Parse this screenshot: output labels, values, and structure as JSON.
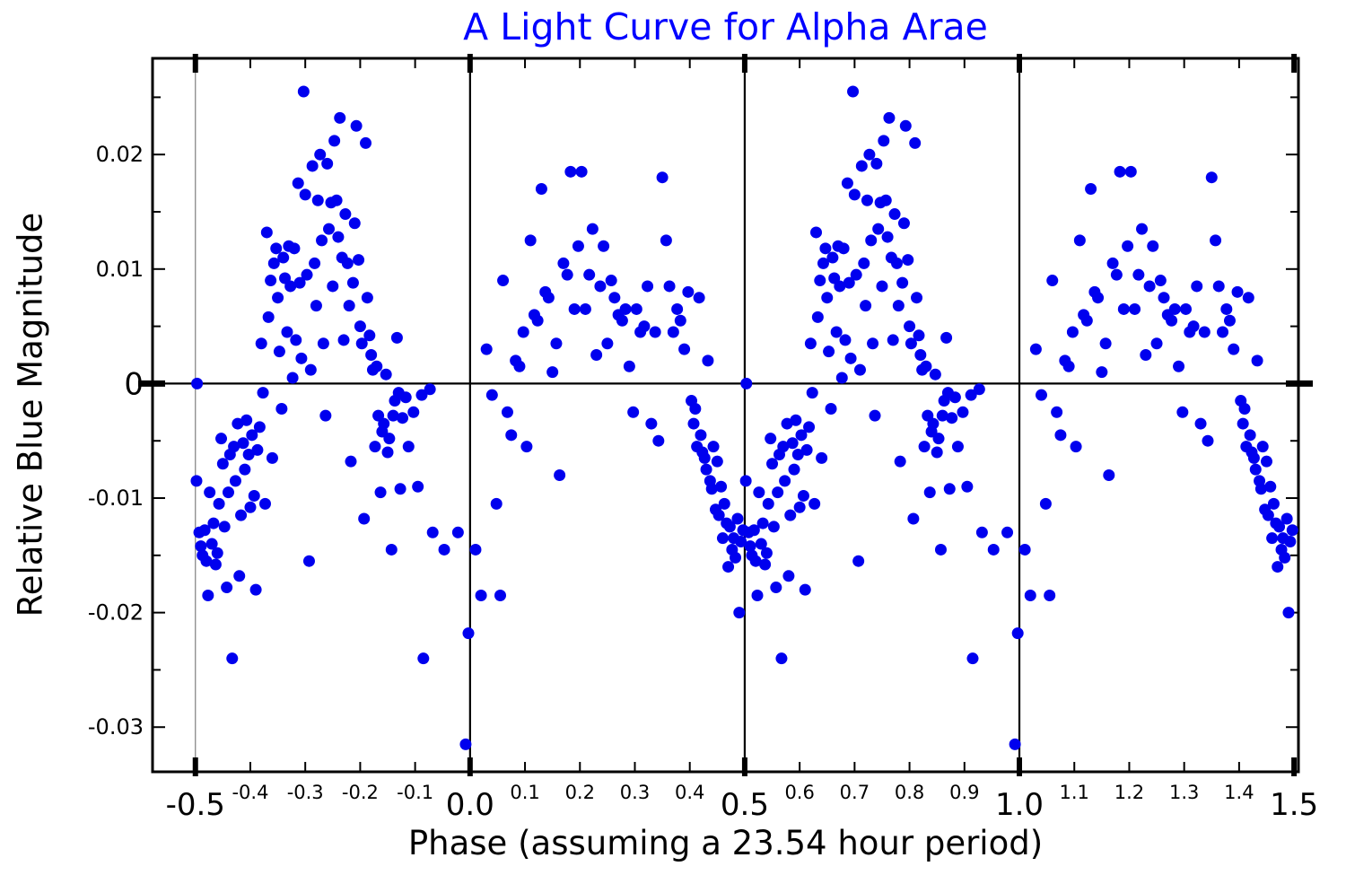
{
  "chart_data": {
    "type": "scatter",
    "title": "A Light Curve for Alpha Arae",
    "xlabel": "Phase (assuming a 23.54 hour period)",
    "ylabel": "Relative Blue Magnitude",
    "title_color": "#0000ff",
    "legend": "none",
    "marker": {
      "shape": "circle",
      "radius_px": 6.5,
      "color": "#0000ee"
    },
    "xlim": [
      -0.578,
      1.508
    ],
    "ylim": [
      -0.0339,
      0.0284
    ],
    "x_major_ticks": [
      {
        "v": -0.5,
        "label": "-0.5"
      },
      {
        "v": 0.0,
        "label": "0.0"
      },
      {
        "v": 0.5,
        "label": "0.5"
      },
      {
        "v": 1.0,
        "label": "1.0"
      },
      {
        "v": 1.5,
        "label": "1.5"
      }
    ],
    "x_minor_ticks": [
      {
        "v": -0.4,
        "label": "-0.4"
      },
      {
        "v": -0.3,
        "label": "-0.3"
      },
      {
        "v": -0.2,
        "label": "-0.2"
      },
      {
        "v": -0.1,
        "label": "-0.1"
      },
      {
        "v": 0.1,
        "label": "0.1"
      },
      {
        "v": 0.2,
        "label": "0.2"
      },
      {
        "v": 0.3,
        "label": "0.3"
      },
      {
        "v": 0.4,
        "label": "0.4"
      },
      {
        "v": 0.6,
        "label": "0.6"
      },
      {
        "v": 0.7,
        "label": "0.7"
      },
      {
        "v": 0.8,
        "label": "0.8"
      },
      {
        "v": 0.9,
        "label": "0.9"
      },
      {
        "v": 1.1,
        "label": "1.1"
      },
      {
        "v": 1.2,
        "label": "1.2"
      },
      {
        "v": 1.3,
        "label": "1.3"
      },
      {
        "v": 1.4,
        "label": "1.4"
      }
    ],
    "y_ticks": [
      {
        "v": 0.02,
        "label": "0.02",
        "big": false
      },
      {
        "v": 0.01,
        "label": "0.01",
        "big": false
      },
      {
        "v": 0,
        "label": "0",
        "big": true
      },
      {
        "v": -0.01,
        "label": "-0.01",
        "big": false
      },
      {
        "v": -0.02,
        "label": "-0.02",
        "big": false
      },
      {
        "v": -0.03,
        "label": "-0.03",
        "big": false
      }
    ],
    "y_minor_ticks": [
      0.025,
      0.015,
      0.005,
      -0.005,
      -0.015,
      -0.025
    ],
    "vertical_lines": [
      {
        "x": -0.5,
        "emphasis": false
      },
      {
        "x": 0.0,
        "emphasis": true
      },
      {
        "x": 0.5,
        "emphasis": true
      },
      {
        "x": 1.0,
        "emphasis": true
      }
    ],
    "horizontal_line": 0,
    "grid": "vertical lines at phase -0.5, 0.0, 0.5, 1.0 and horizontal line at magnitude 0",
    "phase_repeat_offset": 1.0,
    "note": "Phased light curve shown over two cycles: every point is plotted at its phase and again at phase + 1.0.",
    "points": [
      [
        -0.497,
        0.0
      ],
      [
        -0.498,
        -0.0085
      ],
      [
        -0.493,
        -0.013
      ],
      [
        -0.49,
        -0.0142
      ],
      [
        -0.487,
        -0.015
      ],
      [
        -0.483,
        -0.0128
      ],
      [
        -0.48,
        -0.0155
      ],
      [
        -0.477,
        -0.0185
      ],
      [
        -0.474,
        -0.0095
      ],
      [
        -0.47,
        -0.014
      ],
      [
        -0.467,
        -0.0122
      ],
      [
        -0.463,
        -0.0158
      ],
      [
        -0.46,
        -0.0148
      ],
      [
        -0.457,
        -0.0105
      ],
      [
        -0.453,
        -0.0048
      ],
      [
        -0.45,
        -0.007
      ],
      [
        -0.447,
        -0.0125
      ],
      [
        -0.443,
        -0.0178
      ],
      [
        -0.44,
        -0.0095
      ],
      [
        -0.437,
        -0.0062
      ],
      [
        -0.433,
        -0.024
      ],
      [
        -0.43,
        -0.0055
      ],
      [
        -0.427,
        -0.0085
      ],
      [
        -0.423,
        -0.0035
      ],
      [
        -0.42,
        -0.0168
      ],
      [
        -0.417,
        -0.0115
      ],
      [
        -0.413,
        -0.0052
      ],
      [
        -0.41,
        -0.0075
      ],
      [
        -0.407,
        -0.0032
      ],
      [
        -0.403,
        -0.0062
      ],
      [
        -0.4,
        -0.0108
      ],
      [
        -0.397,
        -0.0045
      ],
      [
        -0.393,
        -0.0098
      ],
      [
        -0.39,
        -0.018
      ],
      [
        -0.387,
        -0.0058
      ],
      [
        -0.383,
        -0.0038
      ],
      [
        -0.38,
        0.0035
      ],
      [
        -0.377,
        -0.0008
      ],
      [
        -0.373,
        -0.0105
      ],
      [
        -0.37,
        0.0132
      ],
      [
        -0.367,
        0.0058
      ],
      [
        -0.363,
        0.009
      ],
      [
        -0.36,
        -0.0065
      ],
      [
        -0.357,
        0.0105
      ],
      [
        -0.353,
        0.0118
      ],
      [
        -0.35,
        0.0075
      ],
      [
        -0.347,
        0.0028
      ],
      [
        -0.343,
        -0.0022
      ],
      [
        -0.34,
        0.011
      ],
      [
        -0.337,
        0.0092
      ],
      [
        -0.333,
        0.0045
      ],
      [
        -0.33,
        0.012
      ],
      [
        -0.327,
        0.0085
      ],
      [
        -0.323,
        0.0005
      ],
      [
        -0.32,
        0.0118
      ],
      [
        -0.317,
        0.0038
      ],
      [
        -0.313,
        0.0175
      ],
      [
        -0.31,
        0.0088
      ],
      [
        -0.307,
        0.0022
      ],
      [
        -0.303,
        0.0255
      ],
      [
        -0.3,
        0.0165
      ],
      [
        -0.297,
        0.0095
      ],
      [
        -0.293,
        -0.0155
      ],
      [
        -0.29,
        0.0012
      ],
      [
        -0.287,
        0.019
      ],
      [
        -0.283,
        0.0105
      ],
      [
        -0.28,
        0.0068
      ],
      [
        -0.277,
        0.016
      ],
      [
        -0.273,
        0.02
      ],
      [
        -0.27,
        0.0125
      ],
      [
        -0.267,
        0.0035
      ],
      [
        -0.263,
        -0.0028
      ],
      [
        -0.26,
        0.0192
      ],
      [
        -0.257,
        0.0135
      ],
      [
        -0.253,
        0.0158
      ],
      [
        -0.25,
        0.0085
      ],
      [
        -0.247,
        0.0212
      ],
      [
        -0.243,
        0.016
      ],
      [
        -0.24,
        0.0128
      ],
      [
        -0.237,
        0.0232
      ],
      [
        -0.233,
        0.011
      ],
      [
        -0.23,
        0.0038
      ],
      [
        -0.227,
        0.0148
      ],
      [
        -0.223,
        0.0105
      ],
      [
        -0.22,
        0.0068
      ],
      [
        -0.217,
        -0.0068
      ],
      [
        -0.213,
        0.0088
      ],
      [
        -0.21,
        0.014
      ],
      [
        -0.207,
        0.0225
      ],
      [
        -0.203,
        0.0108
      ],
      [
        -0.2,
        0.005
      ],
      [
        -0.197,
        0.0035
      ],
      [
        -0.193,
        -0.0118
      ],
      [
        -0.19,
        0.021
      ],
      [
        -0.187,
        0.0075
      ],
      [
        -0.183,
        0.0042
      ],
      [
        -0.18,
        0.0025
      ],
      [
        -0.177,
        0.0012
      ],
      [
        -0.173,
        -0.0055
      ],
      [
        -0.17,
        0.0015
      ],
      [
        -0.167,
        -0.0028
      ],
      [
        -0.163,
        -0.0095
      ],
      [
        -0.16,
        -0.0042
      ],
      [
        -0.157,
        -0.0035
      ],
      [
        -0.153,
        0.0008
      ],
      [
        -0.15,
        -0.006
      ],
      [
        -0.147,
        -0.0048
      ],
      [
        -0.143,
        -0.0145
      ],
      [
        -0.14,
        -0.0028
      ],
      [
        -0.137,
        -0.0015
      ],
      [
        -0.133,
        0.004
      ],
      [
        -0.13,
        -0.0008
      ],
      [
        -0.127,
        -0.0092
      ],
      [
        -0.123,
        -0.003
      ],
      [
        -0.117,
        -0.0012
      ],
      [
        -0.112,
        -0.0055
      ],
      [
        -0.103,
        -0.0025
      ],
      [
        -0.095,
        -0.009
      ],
      [
        -0.088,
        -0.001
      ],
      [
        -0.085,
        -0.024
      ],
      [
        -0.073,
        -0.0005
      ],
      [
        -0.068,
        -0.013
      ],
      [
        -0.047,
        -0.0145
      ],
      [
        -0.022,
        -0.013
      ],
      [
        -0.008,
        -0.0315
      ],
      [
        -0.003,
        -0.0218
      ],
      [
        0.01,
        -0.0145
      ],
      [
        0.02,
        -0.0185
      ],
      [
        0.03,
        0.003
      ],
      [
        0.04,
        -0.001
      ],
      [
        0.048,
        -0.0105
      ],
      [
        0.055,
        -0.0185
      ],
      [
        0.06,
        0.009
      ],
      [
        0.068,
        -0.0025
      ],
      [
        0.075,
        -0.0045
      ],
      [
        0.083,
        0.002
      ],
      [
        0.09,
        0.0015
      ],
      [
        0.097,
        0.0045
      ],
      [
        0.103,
        -0.0055
      ],
      [
        0.11,
        0.0125
      ],
      [
        0.117,
        0.006
      ],
      [
        0.123,
        0.0055
      ],
      [
        0.13,
        0.017
      ],
      [
        0.137,
        0.008
      ],
      [
        0.143,
        0.0075
      ],
      [
        0.15,
        0.001
      ],
      [
        0.157,
        0.0035
      ],
      [
        0.163,
        -0.008
      ],
      [
        0.17,
        0.0105
      ],
      [
        0.177,
        0.0095
      ],
      [
        0.183,
        0.0185
      ],
      [
        0.19,
        0.0065
      ],
      [
        0.197,
        0.012
      ],
      [
        0.203,
        0.0185
      ],
      [
        0.21,
        0.0065
      ],
      [
        0.217,
        0.0095
      ],
      [
        0.223,
        0.0135
      ],
      [
        0.23,
        0.0025
      ],
      [
        0.237,
        0.0085
      ],
      [
        0.243,
        0.012
      ],
      [
        0.25,
        0.0035
      ],
      [
        0.257,
        0.009
      ],
      [
        0.263,
        0.0075
      ],
      [
        0.27,
        0.006
      ],
      [
        0.277,
        0.0055
      ],
      [
        0.283,
        0.0065
      ],
      [
        0.29,
        0.0015
      ],
      [
        0.297,
        -0.0025
      ],
      [
        0.303,
        0.0065
      ],
      [
        0.31,
        0.0045
      ],
      [
        0.317,
        0.005
      ],
      [
        0.323,
        0.0085
      ],
      [
        0.33,
        -0.0035
      ],
      [
        0.337,
        0.0045
      ],
      [
        0.343,
        -0.005
      ],
      [
        0.35,
        0.018
      ],
      [
        0.357,
        0.0125
      ],
      [
        0.363,
        0.0085
      ],
      [
        0.37,
        0.0045
      ],
      [
        0.377,
        0.0065
      ],
      [
        0.383,
        0.0055
      ],
      [
        0.39,
        0.003
      ],
      [
        0.397,
        0.008
      ],
      [
        0.403,
        -0.0015
      ],
      [
        0.407,
        -0.0035
      ],
      [
        0.41,
        -0.0022
      ],
      [
        0.413,
        -0.0055
      ],
      [
        0.417,
        0.0075
      ],
      [
        0.42,
        -0.0045
      ],
      [
        0.423,
        -0.006
      ],
      [
        0.427,
        -0.0065
      ],
      [
        0.43,
        -0.0075
      ],
      [
        0.433,
        0.002
      ],
      [
        0.437,
        -0.0085
      ],
      [
        0.44,
        -0.0092
      ],
      [
        0.443,
        -0.0055
      ],
      [
        0.447,
        -0.011
      ],
      [
        0.45,
        -0.0068
      ],
      [
        0.453,
        -0.0115
      ],
      [
        0.457,
        -0.009
      ],
      [
        0.46,
        -0.0135
      ],
      [
        0.463,
        -0.0105
      ],
      [
        0.467,
        -0.0122
      ],
      [
        0.47,
        -0.016
      ],
      [
        0.473,
        -0.0125
      ],
      [
        0.477,
        -0.0145
      ],
      [
        0.48,
        -0.0135
      ],
      [
        0.483,
        -0.0152
      ],
      [
        0.487,
        -0.0118
      ],
      [
        0.49,
        -0.02
      ],
      [
        0.493,
        -0.0138
      ],
      [
        0.497,
        -0.0128
      ]
    ]
  }
}
